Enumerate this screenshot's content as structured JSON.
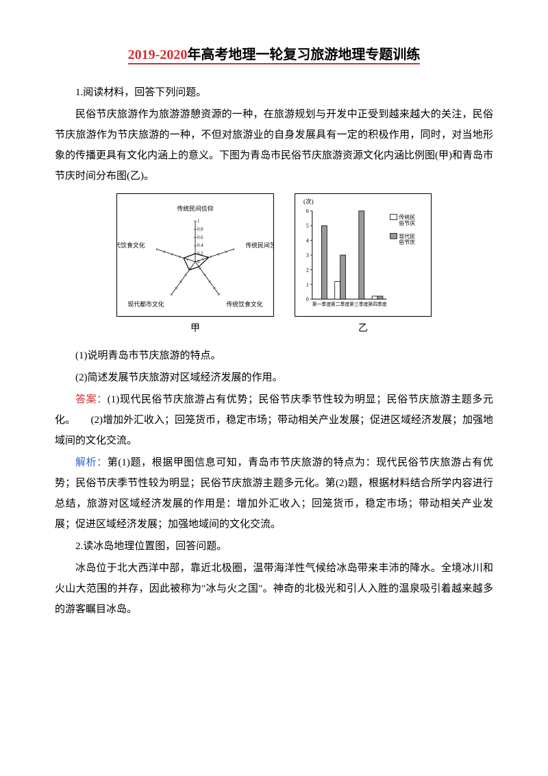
{
  "title": {
    "prefix": "2019-2020",
    "rest": "年高考地理一轮复习旅游地理专题训练"
  },
  "q1": {
    "heading": "1.阅读材料，回答下列问题。",
    "context": "民俗节庆旅游作为旅游游憩资源的一种，在旅游规划与开发中正受到越来越大的关注，民俗节庆旅游作为节庆旅游的一种，不但对旅游业的自身发展具有一定的积极作用，同时，对当地形象的传播更具有文化内涵上的意义。下图为青岛市民俗节庆旅游资源文化内涵比例图(甲)和青岛市节庆时间分布图(乙)。",
    "sub1": "(1)说明青岛市节庆旅游的特点。",
    "sub2": "(2)简述发展节庆旅游对区域经济发展的作用。",
    "answerLabel": "答案：",
    "answer": "(1)现代民俗节庆旅游占有优势；民俗节庆季节性较为明显；民俗节庆旅游主题多元化。　　(2)增加外汇收入；回笼货币，稳定市场；带动相关产业发展；促进区域经济发展；加强地域间的文化交流。",
    "analysisLabel": "解析：",
    "analysis": "第(1)题，根据甲图信息可知，青岛市节庆旅游的特点为：现代民俗节庆旅游占有优势；民俗节庆季节性较为明显；民俗节庆旅游主题多元化。第(2)题，根据材料结合所学内容进行总结，旅游对区域经济发展的作用是：增加外汇收入；回笼货币，稳定市场；带动相关产业发展；促进区域经济发展；加强地域间的文化交流。"
  },
  "q2": {
    "heading": "2.读冰岛地理位置图，回答问题。",
    "context": "冰岛位于北大西洋中部，靠近北极圈，温带海洋性气候给冰岛带来丰沛的降水。全境冰川和火山大范围的并存，因此被称为\"冰与火之国\"。神奇的北极光和引人入胜的温泉吸引着越来越多的游客瞩目冰岛。"
  },
  "chartA": {
    "label": "甲",
    "axes": [
      "传统民间信仰",
      "传统民间艺术",
      "传统饮食文化",
      "现代都市文化",
      "现代饮食文化"
    ],
    "ticks": [
      0,
      0.2,
      0.4,
      0.6,
      0.8,
      1
    ],
    "data": [
      0.2,
      0.35,
      0.15,
      0.25,
      0.3
    ],
    "lineColor": "#000000",
    "fillColor": "none",
    "background": "#ffffff",
    "fontSize": 9
  },
  "chartB": {
    "label": "乙",
    "yLabel": "(次)",
    "yMax": 6,
    "yTicks": [
      0,
      1,
      2,
      3,
      4,
      5,
      6
    ],
    "categories": [
      "第一季度",
      "第二季度",
      "第三季度",
      "第四季度"
    ],
    "legend": [
      "传统民俗节庆",
      "现代民俗节庆"
    ],
    "legendColors": [
      "#ffffff",
      "#999999"
    ],
    "data": {
      "traditional": [
        0,
        1.2,
        0,
        0.2
      ],
      "modern": [
        5,
        3,
        6,
        0.2
      ]
    },
    "barBorder": "#000000",
    "background": "#ffffff",
    "fontSize": 8
  }
}
